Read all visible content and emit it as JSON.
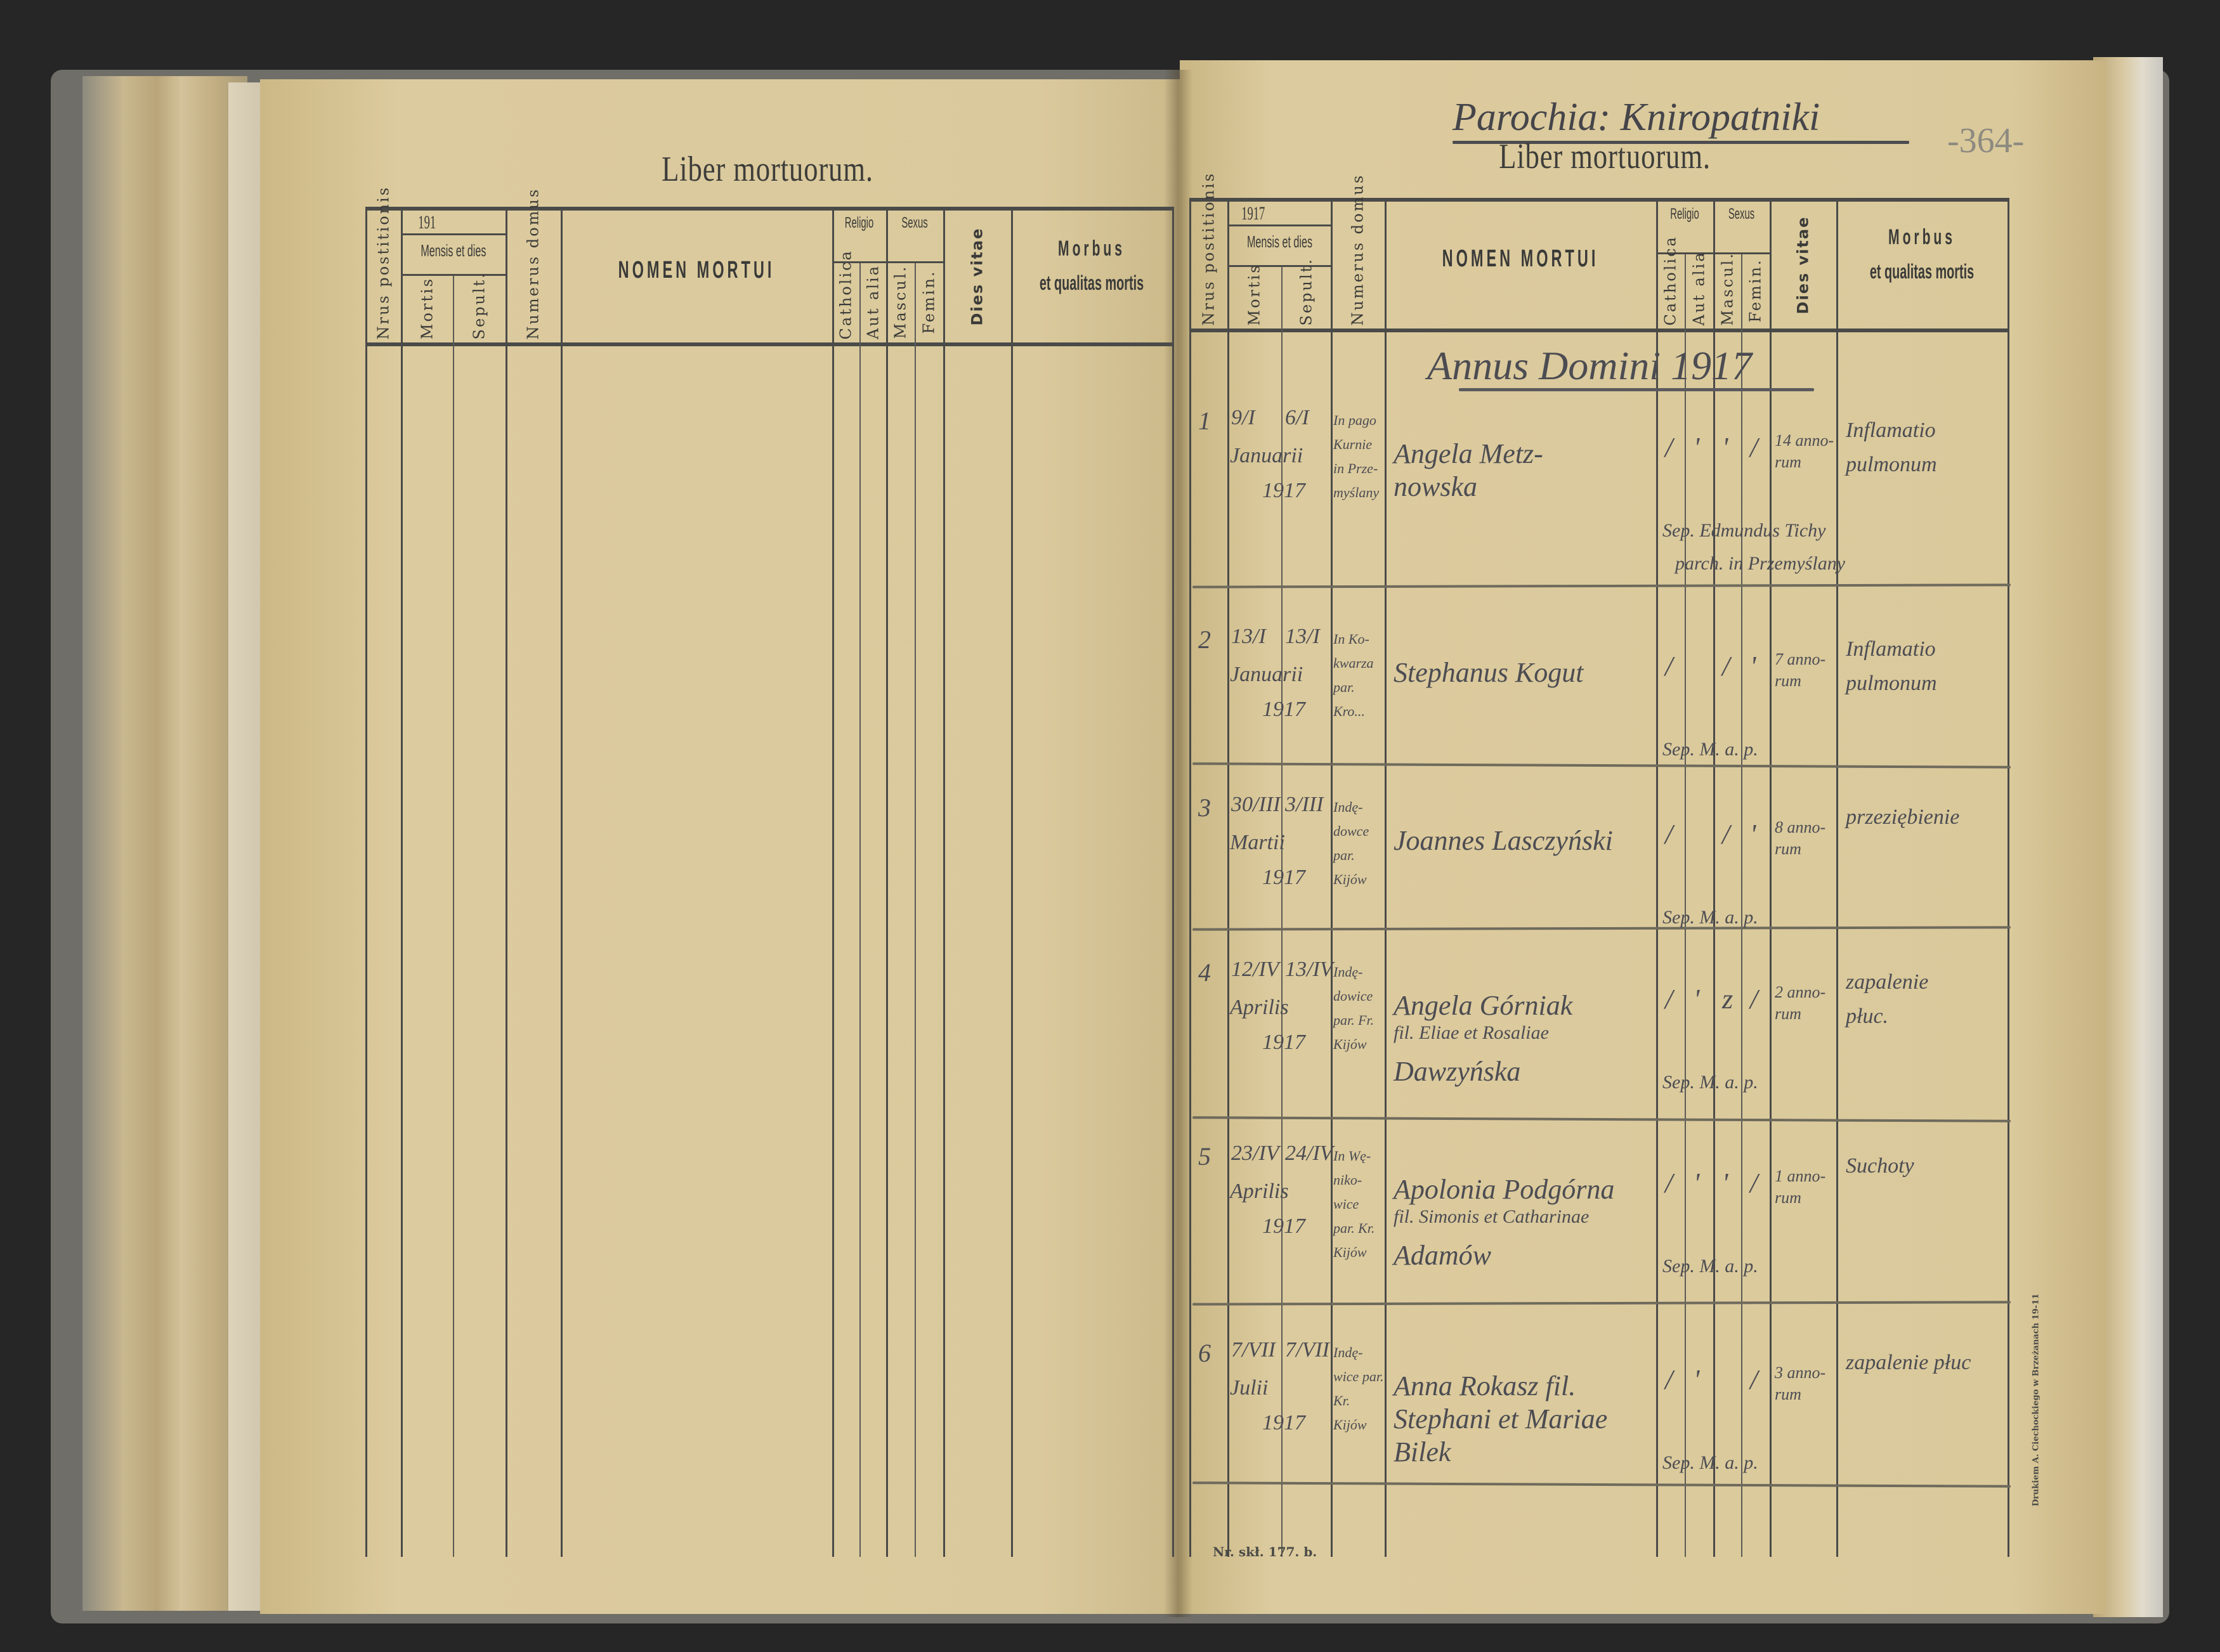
{
  "book": {
    "left_page": {
      "title": "Liber mortuorum.",
      "year_prefix": "191"
    },
    "right_page": {
      "parish_heading": "Parochia: Kniropatniki",
      "page_number": "-364-",
      "title": "Liber mortuorum.",
      "year_prefix": "1917",
      "annus_heading": "Annus Domini 1917",
      "form_number": "Nr. skł. 177. b.",
      "printer": "Drukiem A. Ciechockiego w Brzeżanach 19-11"
    },
    "headers": {
      "nrus": "Nrus postitionis",
      "mensis": "Mensis et dies",
      "mortis": "Mortis",
      "sepult": "Sepult.",
      "domus": "Numerus domus",
      "nomen": "NOMEN MORTUI",
      "religio": "Religio",
      "catholica": "Catholica",
      "aut_alia": "Aut alia",
      "sexus": "Sexus",
      "mascul": "Mascul.",
      "femin": "Femin.",
      "dies_vitae": "Dies vitae",
      "morbus": "Morbus",
      "qualitas": "et qualitas mortis"
    },
    "entries": [
      {
        "no": "1",
        "mortis": "9/I",
        "sepult": "6/I",
        "month": "Januarii",
        "year": "1917",
        "domus": [
          "In pago",
          "Kurnie",
          "in Prze-",
          "myślany"
        ],
        "name": [
          "Angela Metz-",
          "nowska"
        ],
        "catholica": "/",
        "aut_alia": "'",
        "mascul": "'",
        "femin": "/",
        "dies_vitae": [
          "14 anno-",
          "rum"
        ],
        "morbus": [
          "Inflamatio",
          "pulmonum"
        ],
        "sepelivit": [
          "Sep. Edmundus Tichy",
          "parch. in Przemyślany"
        ]
      },
      {
        "no": "2",
        "mortis": "13/I",
        "sepult": "13/I",
        "month": "Januarii",
        "year": "1917",
        "domus": [
          "In Ko-",
          "kwarza",
          "par.",
          "Kro..."
        ],
        "name": [
          "Stephanus Kogut"
        ],
        "catholica": "/",
        "aut_alia": "",
        "mascul": "/",
        "femin": "'",
        "dies_vitae": [
          "7 anno-",
          "rum"
        ],
        "morbus": [
          "Inflamatio",
          "pulmonum"
        ],
        "sepelivit": [
          "Sep. M. a. p."
        ]
      },
      {
        "no": "3",
        "mortis": "30/III",
        "sepult": "3/III",
        "month": "Martii",
        "year": "1917",
        "domus": [
          "Indę-",
          "dowce",
          "par.",
          "Kijów"
        ],
        "name": [
          "Joannes Lasczyński"
        ],
        "catholica": "/",
        "aut_alia": "",
        "mascul": "/",
        "femin": "'",
        "dies_vitae": [
          "8 anno-",
          "rum"
        ],
        "morbus": [
          "przeziębienie"
        ],
        "sepelivit": [
          "Sep. M. a. p."
        ]
      },
      {
        "no": "4",
        "mortis": "12/IV",
        "sepult": "13/IV",
        "month": "Aprilis",
        "year": "1917",
        "domus": [
          "Indę-",
          "dowice",
          "par. Fr.",
          "Kijów"
        ],
        "name": [
          "Angela Górniak",
          "fil. Eliae et Rosaliae",
          "Dawzyńska"
        ],
        "catholica": "/",
        "aut_alia": "'",
        "mascul": "z",
        "femin": "/",
        "dies_vitae": [
          "2 anno-",
          "rum"
        ],
        "morbus": [
          "zapalenie",
          "płuc."
        ],
        "sepelivit": [
          "Sep. M. a. p."
        ]
      },
      {
        "no": "5",
        "mortis": "23/IV",
        "sepult": "24/IV",
        "month": "Aprilis",
        "year": "1917",
        "domus": [
          "In Wę-",
          "niko-",
          "wice",
          "par. Kr.",
          "Kijów"
        ],
        "name": [
          "Apolonia Podgórna",
          "fil. Simonis et Catharinae",
          "Adamów"
        ],
        "catholica": "/",
        "aut_alia": "'",
        "mascul": "'",
        "femin": "/",
        "dies_vitae": [
          "1 anno-",
          "rum"
        ],
        "morbus": [
          "Suchoty"
        ],
        "sepelivit": [
          "Sep. M. a. p."
        ]
      },
      {
        "no": "6",
        "mortis": "7/VII",
        "sepult": "7/VII",
        "month": "Julii",
        "year": "1917",
        "domus": [
          "Indę-",
          "wice par.",
          "Kr.",
          "Kijów"
        ],
        "name": [
          "Anna Rokasz fil.",
          "Stephani et Mariae",
          "Bilek"
        ],
        "catholica": "/",
        "aut_alia": "'",
        "mascul": "",
        "femin": "/",
        "dies_vitae": [
          "3 anno-",
          "rum"
        ],
        "morbus": [
          "zapalenie płuc"
        ],
        "sepelivit": [
          "Sep. M. a. p."
        ]
      }
    ]
  }
}
